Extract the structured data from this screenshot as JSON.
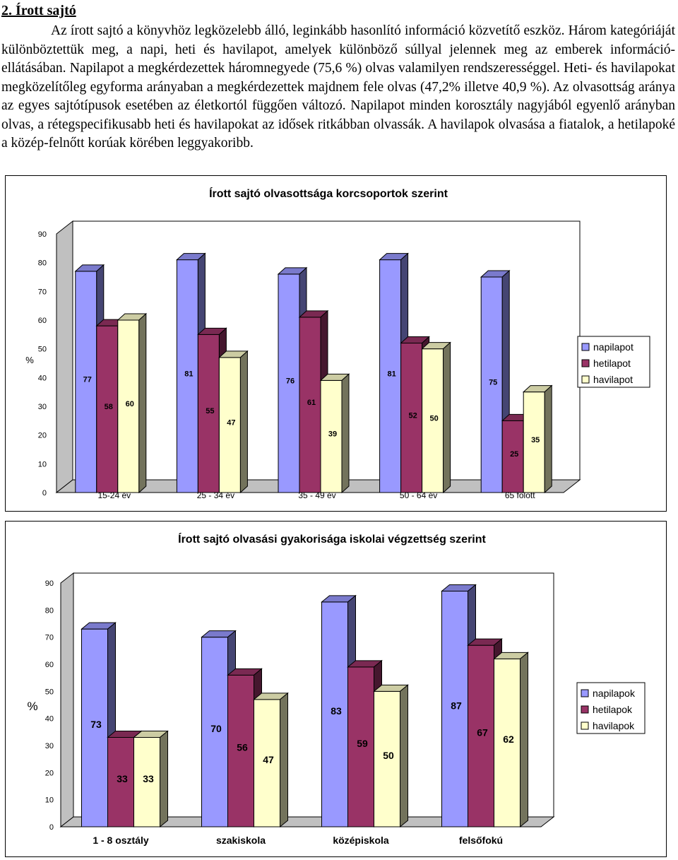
{
  "heading": "2. Írott sajtó",
  "paragraph": "Az írott sajtó a könyvhöz legközelebb álló, leginkább hasonlító információ közvetítő eszköz. Három kategóriáját különböztettük meg, a napi, heti és havilapot, amelyek különböző súllyal jelennek meg az emberek információ-ellátásában. Napilapot a megkérdezettek háromnegyede (75,6 %) olvas valamilyen rendszerességgel. Heti- és havilapokat megközelítőleg egyforma arányaban a megkérdezettek majdnem fele olvas (47,2% illetve 40,9 %). Az olvasottság aránya az egyes sajtótípusok esetében az életkortól függően változó. Napilapot minden korosztály nagyjából egyenlő arányban olvas, a rétegspecifikusabb heti és havilapokat az idősek ritkábban olvassák. A havilapok olvasása a fiatalok, a hetilapoké a közép-felnőtt korúak körében leggyakoribb.",
  "colors": {
    "series1": "#9999ff",
    "series2": "#993366",
    "series3": "#ffffcc",
    "floor": "#c0c0c0",
    "wall": "#ffffff"
  },
  "chart_data": [
    {
      "type": "bar",
      "title": "Írott sajtó olvasottsága korcsoportok szerint",
      "ylabel": "%",
      "xlabel": "",
      "ylim": [
        0,
        90
      ],
      "yticks": [
        "0",
        "10",
        "20",
        "30",
        "40",
        "50",
        "60",
        "70",
        "80",
        "90"
      ],
      "categories": [
        "15-24 év",
        "25 - 34 év",
        "35 - 49 év",
        "50 - 64 év",
        "65 fölött"
      ],
      "series": [
        {
          "name": "napilapot",
          "values": [
            77,
            81,
            76,
            81,
            75
          ]
        },
        {
          "name": "hetilapot",
          "values": [
            58,
            55,
            61,
            52,
            25
          ]
        },
        {
          "name": "havilapot",
          "values": [
            60,
            47,
            39,
            50,
            35
          ]
        }
      ],
      "legend": "right",
      "grid": false
    },
    {
      "type": "bar",
      "title": "Írott sajtó olvasási gyakorisága iskolai végzettség szerint",
      "ylabel": "%",
      "xlabel": "",
      "ylim": [
        0,
        90
      ],
      "yticks": [
        "0",
        "10",
        "20",
        "30",
        "40",
        "50",
        "60",
        "70",
        "80",
        "90"
      ],
      "categories": [
        "1 - 8 osztály",
        "szakiskola",
        "középiskola",
        "felsőfokú"
      ],
      "series": [
        {
          "name": "napilapok",
          "values": [
            73,
            70,
            83,
            87
          ]
        },
        {
          "name": "hetilapok",
          "values": [
            33,
            56,
            59,
            67
          ]
        },
        {
          "name": "havilapok",
          "values": [
            33,
            47,
            50,
            62
          ]
        }
      ],
      "legend": "right",
      "grid": false
    }
  ]
}
